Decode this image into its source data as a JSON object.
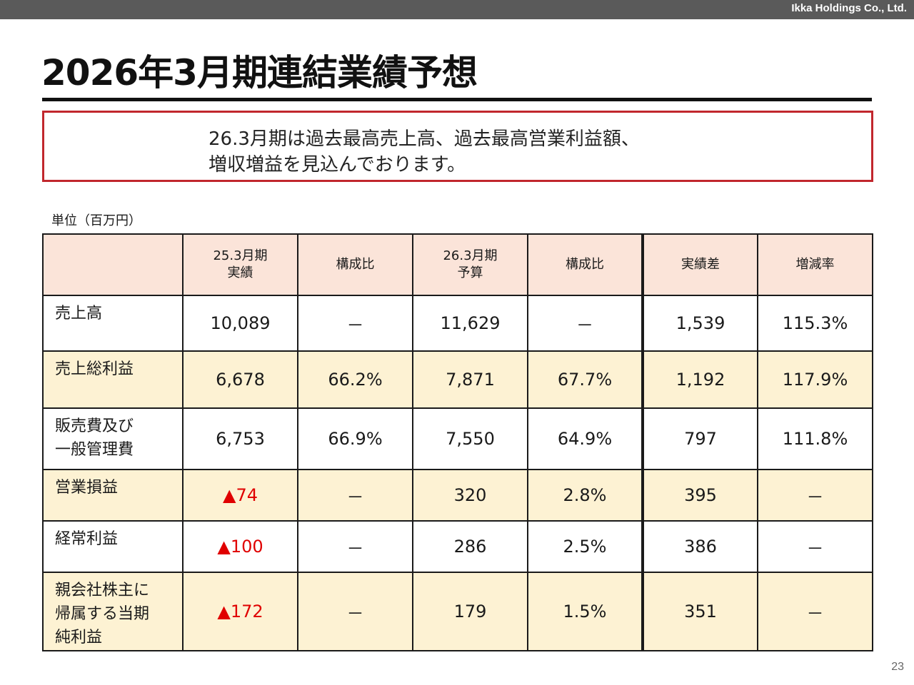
{
  "company": "Ikka Holdings Co., Ltd.",
  "title": "2026年3月期連結業績予想",
  "callout": {
    "line1": "26.3月期は過去最高売上高、過去最高営業利益額、",
    "line2": "増収増益を見込んでおります。"
  },
  "unit_label": "単位（百万円）",
  "table": {
    "headers": [
      "",
      "25.3月期\n実績",
      "構成比",
      "26.3月期\n予算",
      "構成比",
      "実績差",
      "増減率"
    ],
    "rows": [
      {
        "label": "売上高",
        "cells": [
          "10,089",
          "－",
          "11,629",
          "－",
          "1,539",
          "115.3%"
        ]
      },
      {
        "label": "売上総利益",
        "cells": [
          "6,678",
          "66.2%",
          "7,871",
          "67.7%",
          "1,192",
          "117.9%"
        ]
      },
      {
        "label": "販売費及び\n一般管理費",
        "cells": [
          "6,753",
          "66.9%",
          "7,550",
          "64.9%",
          "797",
          "111.8%"
        ]
      },
      {
        "label": "営業損益",
        "cells": [
          "▲74",
          "－",
          "320",
          "2.8%",
          "395",
          "－"
        ]
      },
      {
        "label": "経常利益",
        "cells": [
          "▲100",
          "－",
          "286",
          "2.5%",
          "386",
          "－"
        ]
      },
      {
        "label": "親会社株主に\n帰属する当期\n純利益",
        "cells": [
          "▲172",
          "－",
          "179",
          "1.5%",
          "351",
          "－"
        ]
      }
    ]
  },
  "colors": {
    "header_bg": "#fbe4d9",
    "alt_row_bg": "#fdf2d3",
    "negative": "#e00000",
    "callout_border": "#c1272d",
    "topbar": "#5a5a5a"
  },
  "page_number": "23"
}
